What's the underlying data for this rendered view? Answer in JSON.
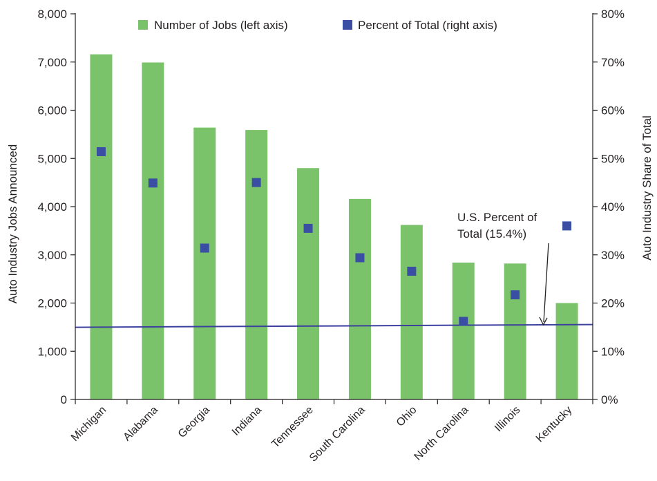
{
  "chart_data": {
    "type": "bar",
    "categories": [
      "Michigan",
      "Alabama",
      "Georgia",
      "Indiana",
      "Tennessee",
      "South Carolina",
      "Ohio",
      "North Carolina",
      "Illinois",
      "Kentucky"
    ],
    "series": [
      {
        "name": "Number of Jobs (left axis)",
        "type": "bar",
        "axis": "left",
        "color": "#7ac36a",
        "values": [
          7160,
          6990,
          5640,
          5590,
          4800,
          4160,
          3620,
          2840,
          2820,
          2000
        ]
      },
      {
        "name": "Percent of Total (right axis)",
        "type": "scatter",
        "axis": "right",
        "color": "#3a4fa3",
        "values": [
          51.4,
          44.9,
          31.4,
          45.0,
          35.5,
          29.4,
          26.6,
          16.2,
          21.7,
          36.0
        ]
      }
    ],
    "reference_line": {
      "value": 15.4,
      "axis": "right",
      "color": "#3b3f9e"
    },
    "annotation": {
      "lines": [
        "U.S. Percent of",
        "Total (15.4%)"
      ]
    },
    "ylabel": "Auto Industry Jobs Announced",
    "y2label": "Auto Industry Share of Total",
    "ylim": [
      0,
      8000
    ],
    "y2lim": [
      0,
      80
    ],
    "yticks": [
      "0",
      "1,000",
      "2,000",
      "3,000",
      "4,000",
      "5,000",
      "6,000",
      "7,000",
      "8,000"
    ],
    "y2ticks": [
      "0%",
      "10%",
      "20%",
      "30%",
      "40%",
      "50%",
      "60%",
      "70%",
      "80%"
    ],
    "legend_position": "top",
    "grid": false
  }
}
